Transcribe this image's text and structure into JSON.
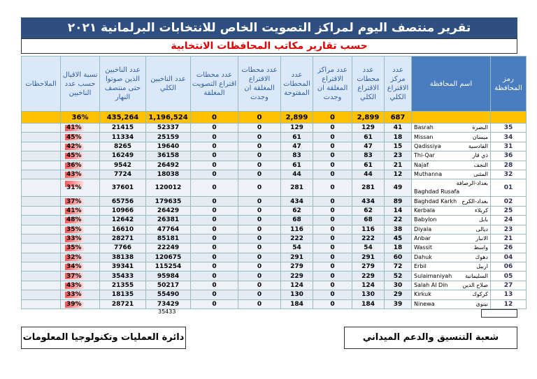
{
  "header": {
    "title": "تقرير منتصف اليوم لمراكز التصويت الخاص للانتخابات البرلمانية ٢٠٢١",
    "subtitle": "حسب تقارير مكاتب المحافظات الانتخابية"
  },
  "table": {
    "columns": [
      "رمز المحافظة",
      "اسم المحافظة",
      "عدد مركز الاقتراع الكلي",
      "عدد محطات الاقتراع الكلي",
      "عدد مراكز الاقتراع المغلقة ان وجدت",
      "عدد المحطات المفتوحة",
      "عدد محطات الاقتراع المغلقة ان وجدت",
      "عدد محطات اقتراع التصويت المغلقة",
      "عدد الناخبين الكلي",
      "عدد الناخبين الذين صوتوا حتى منتصف النهار",
      "نسبة الاقبال حسب عدد الناخبين",
      "الملاحظات"
    ],
    "totals": [
      "687",
      "2,899",
      "0",
      "2,899",
      "0",
      "0",
      "1,196,524",
      "435,264",
      "36%"
    ],
    "rows": [
      [
        "35",
        "البصرة",
        "Basrah",
        41,
        129,
        0,
        129,
        0,
        0,
        52337,
        21415,
        "41%"
      ],
      [
        "34",
        "ميسان",
        "Missan",
        18,
        61,
        0,
        61,
        0,
        0,
        25159,
        11334,
        "45%"
      ],
      [
        "31",
        "القادسية",
        "Qadissiya",
        15,
        47,
        0,
        47,
        0,
        0,
        19640,
        8265,
        "42%"
      ],
      [
        "36",
        "ذي قار",
        "Thi-Qar",
        23,
        83,
        0,
        83,
        0,
        0,
        36158,
        16249,
        "45%"
      ],
      [
        "28",
        "النجف",
        "Najaf",
        21,
        61,
        0,
        61,
        0,
        0,
        26492,
        9542,
        "36%"
      ],
      [
        "32",
        "المثنى",
        "Muthanna",
        12,
        44,
        0,
        44,
        0,
        0,
        18038,
        7724,
        "43%"
      ],
      [
        "01",
        "بغداد-الرصافة",
        "Baghdad Rusafa",
        49,
        281,
        0,
        281,
        0,
        0,
        120012,
        37601,
        "31%"
      ],
      [
        "02",
        "بغداد-الكرخ",
        "Baghdad Karkh",
        89,
        434,
        0,
        434,
        0,
        0,
        179635,
        65756,
        "37%"
      ],
      [
        "25",
        "كربلاء",
        "Kerbala",
        14,
        62,
        0,
        62,
        0,
        0,
        26429,
        10966,
        "41%"
      ],
      [
        "24",
        "بابل",
        "Babylon",
        22,
        68,
        0,
        68,
        0,
        0,
        26381,
        12642,
        "48%"
      ],
      [
        "23",
        "ديالى",
        "Diyala",
        38,
        116,
        0,
        116,
        0,
        0,
        47764,
        16610,
        "35%"
      ],
      [
        "21",
        "الانبار",
        "Anbar",
        45,
        222,
        0,
        222,
        0,
        0,
        85181,
        28271,
        "33%"
      ],
      [
        "26",
        "واسط",
        "Wassit",
        18,
        54,
        0,
        54,
        0,
        0,
        22249,
        7766,
        "35%"
      ],
      [
        "04",
        "دهوك",
        "Dahuk",
        60,
        291,
        0,
        291,
        0,
        0,
        120675,
        38138,
        "32%"
      ],
      [
        "06",
        "اربيل",
        "Erbil",
        72,
        279,
        0,
        279,
        0,
        0,
        115254,
        39341,
        "34%"
      ],
      [
        "05",
        "السليمانية",
        "Sulaimaniyah",
        52,
        229,
        0,
        229,
        0,
        0,
        95984,
        35433,
        "37%"
      ],
      [
        "27",
        "صلاح الدين",
        "Salah Al Din",
        30,
        124,
        0,
        124,
        0,
        0,
        50217,
        21355,
        "43%"
      ],
      [
        "13",
        "كركوك",
        "Kirkuk",
        29,
        130,
        0,
        130,
        0,
        0,
        55490,
        18135,
        "33%"
      ],
      [
        "12",
        "نينوى",
        "Ninewa",
        39,
        184,
        0,
        184,
        0,
        0,
        73429,
        28721,
        "39%"
      ]
    ]
  },
  "note": "35433",
  "footer": {
    "left": "دائرة العمليات وتكنولوجيا المعلومات",
    "right": "شعبة التنسيق والدعم الميداني"
  }
}
